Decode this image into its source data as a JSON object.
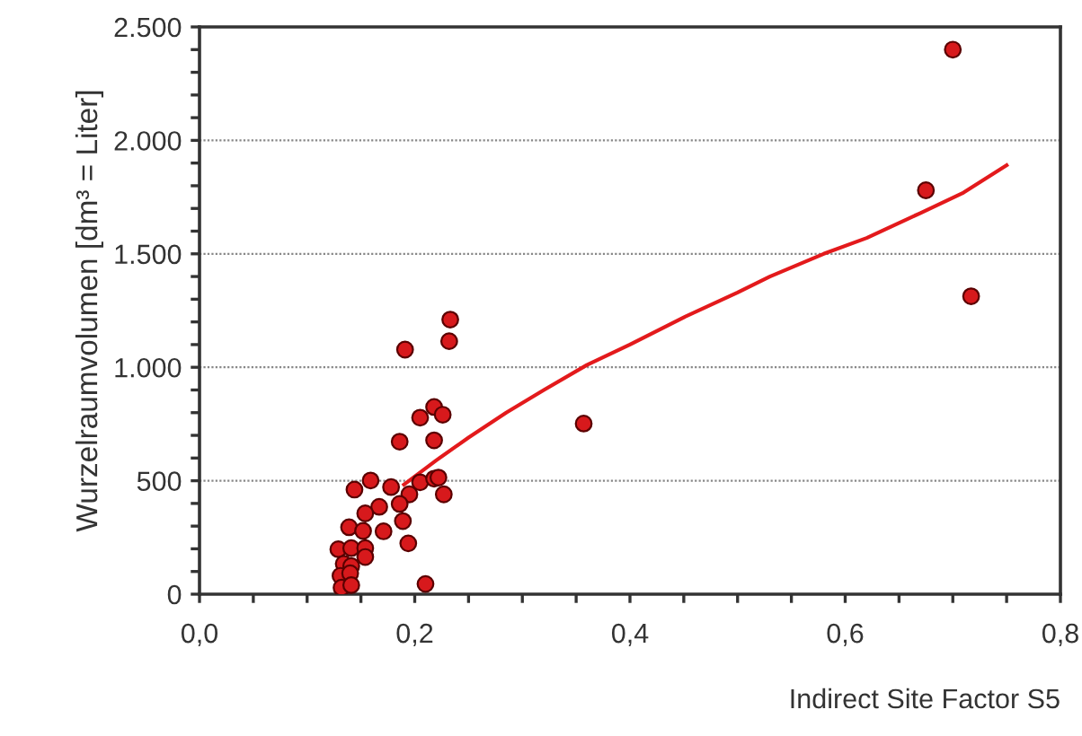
{
  "chart_data": {
    "type": "scatter",
    "xlabel": "Indirect Site Factor S5",
    "ylabel": "Wurzelraumvolumen [dm³ = Liter]",
    "xlim": [
      0,
      0.8
    ],
    "ylim": [
      0,
      2500
    ],
    "xticks": [
      {
        "value": 0,
        "label": "0,0"
      },
      {
        "value": 0.05,
        "label": null
      },
      {
        "value": 0.1,
        "label": null
      },
      {
        "value": 0.15,
        "label": null
      },
      {
        "value": 0.2,
        "label": "0,2"
      },
      {
        "value": 0.25,
        "label": null
      },
      {
        "value": 0.3,
        "label": null
      },
      {
        "value": 0.35,
        "label": null
      },
      {
        "value": 0.4,
        "label": "0,4"
      },
      {
        "value": 0.45,
        "label": null
      },
      {
        "value": 0.5,
        "label": null
      },
      {
        "value": 0.55,
        "label": null
      },
      {
        "value": 0.6,
        "label": "0,6"
      },
      {
        "value": 0.65,
        "label": null
      },
      {
        "value": 0.7,
        "label": null
      },
      {
        "value": 0.75,
        "label": null
      },
      {
        "value": 0.8,
        "label": "0,8"
      }
    ],
    "yticks": [
      {
        "value": 0,
        "label": "0"
      },
      {
        "value": 100,
        "label": null
      },
      {
        "value": 200,
        "label": null
      },
      {
        "value": 300,
        "label": null
      },
      {
        "value": 400,
        "label": null
      },
      {
        "value": 500,
        "label": "500"
      },
      {
        "value": 600,
        "label": null
      },
      {
        "value": 700,
        "label": null
      },
      {
        "value": 800,
        "label": null
      },
      {
        "value": 900,
        "label": null
      },
      {
        "value": 1000,
        "label": "1.000"
      },
      {
        "value": 1100,
        "label": null
      },
      {
        "value": 1200,
        "label": null
      },
      {
        "value": 1300,
        "label": null
      },
      {
        "value": 1400,
        "label": null
      },
      {
        "value": 1500,
        "label": "1.500"
      },
      {
        "value": 1600,
        "label": null
      },
      {
        "value": 1700,
        "label": null
      },
      {
        "value": 1800,
        "label": null
      },
      {
        "value": 1900,
        "label": null
      },
      {
        "value": 2000,
        "label": "2.000"
      },
      {
        "value": 2100,
        "label": null
      },
      {
        "value": 2200,
        "label": null
      },
      {
        "value": 2300,
        "label": null
      },
      {
        "value": 2400,
        "label": null
      },
      {
        "value": 2500,
        "label": "2.500"
      }
    ],
    "grid": "y",
    "series": [
      {
        "type": "line",
        "marker": "none",
        "color": "#e31a1c",
        "x": [
          0.19,
          0.22,
          0.25,
          0.285,
          0.32,
          0.36,
          0.4,
          0.45,
          0.5,
          0.53,
          0.58,
          0.62,
          0.67,
          0.71,
          0.75
        ],
        "values": [
          483,
          590,
          690,
          800,
          900,
          1010,
          1100,
          1220,
          1330,
          1400,
          1500,
          1570,
          1680,
          1770,
          1890
        ]
      },
      {
        "marker": "circle",
        "color": "#d7191c",
        "x": [
          0.233,
          0.232,
          0.191,
          0.218,
          0.205,
          0.226,
          0.186,
          0.218,
          0.144,
          0.159,
          0.178,
          0.195,
          0.205,
          0.218,
          0.222,
          0.227,
          0.186,
          0.167,
          0.154,
          0.189,
          0.171,
          0.139,
          0.152,
          0.194,
          0.129,
          0.141,
          0.154,
          0.154,
          0.134,
          0.141,
          0.131,
          0.14,
          0.132,
          0.141,
          0.21,
          0.357,
          0.675,
          0.7,
          0.717
        ],
        "values": [
          1210,
          1115,
          1078,
          825,
          778,
          791,
          672,
          678,
          461,
          501,
          472,
          440,
          493,
          509,
          514,
          440,
          398,
          385,
          356,
          322,
          277,
          295,
          279,
          224,
          198,
          203,
          203,
          164,
          134,
          124,
          81,
          92,
          29,
          40,
          45,
          752,
          1780,
          2400,
          1313
        ]
      }
    ]
  }
}
